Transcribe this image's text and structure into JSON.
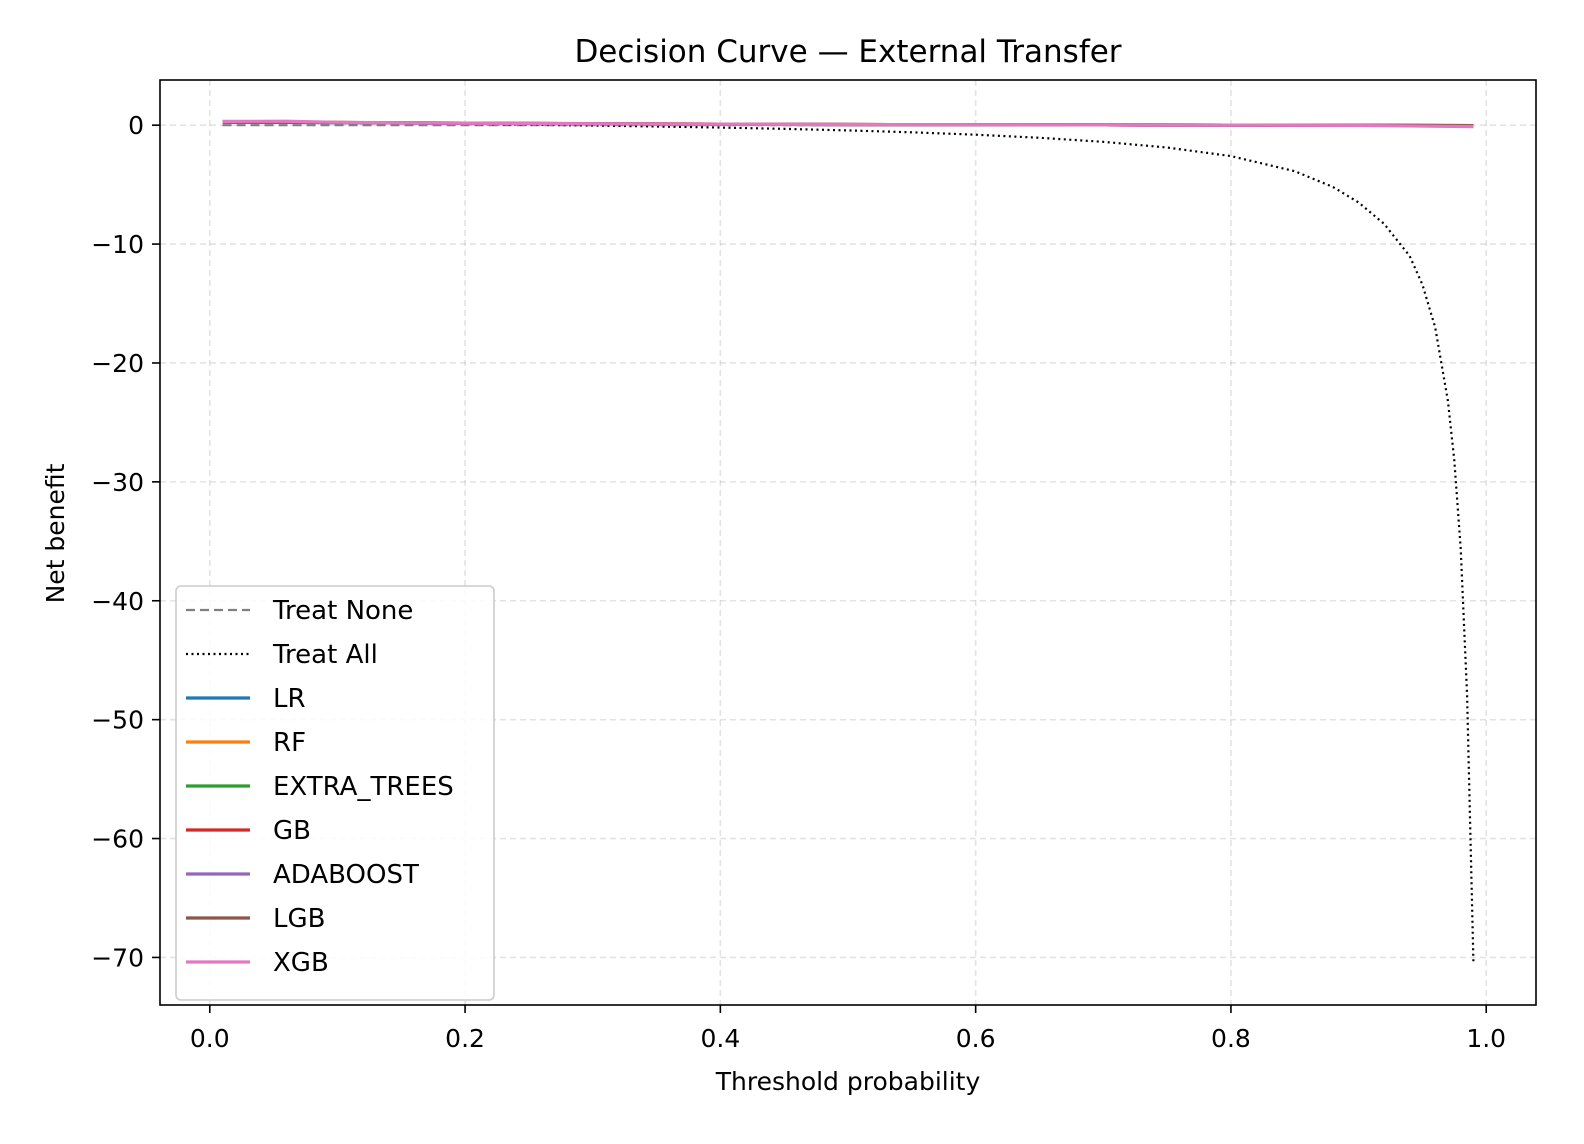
{
  "chart_data": {
    "type": "line",
    "title": "Decision Curve — External Transfer",
    "xlabel": "Threshold probability",
    "ylabel": "Net benefit",
    "xlim": [
      -0.039,
      1.039
    ],
    "ylim": [
      -74.0,
      3.8
    ],
    "xticks": [
      {
        "value": 0.0,
        "label": "0.0"
      },
      {
        "value": 0.2,
        "label": "0.2"
      },
      {
        "value": 0.4,
        "label": "0.4"
      },
      {
        "value": 0.6,
        "label": "0.6"
      },
      {
        "value": 0.8,
        "label": "0.8"
      },
      {
        "value": 1.0,
        "label": "1.0"
      }
    ],
    "yticks": [
      {
        "value": 0,
        "label": "0"
      },
      {
        "value": -10,
        "label": "−10"
      },
      {
        "value": -20,
        "label": "−20"
      },
      {
        "value": -30,
        "label": "−30"
      },
      {
        "value": -40,
        "label": "−40"
      },
      {
        "value": -50,
        "label": "−50"
      },
      {
        "value": -60,
        "label": "−60"
      },
      {
        "value": -70,
        "label": "−70"
      }
    ],
    "grid": true,
    "legend_position": "lower-left",
    "series": [
      {
        "name": "Treat None",
        "color": "#7f7f7f",
        "style": "dashed",
        "x": [
          0.01,
          0.99
        ],
        "y": [
          0,
          0
        ]
      },
      {
        "name": "Treat All",
        "color": "#000000",
        "style": "dotted",
        "x": [
          0.01,
          0.05,
          0.1,
          0.15,
          0.2,
          0.25,
          0.3,
          0.35,
          0.4,
          0.45,
          0.5,
          0.55,
          0.6,
          0.65,
          0.7,
          0.75,
          0.8,
          0.85,
          0.88,
          0.9,
          0.92,
          0.94,
          0.95,
          0.96,
          0.97,
          0.975,
          0.98,
          0.985,
          0.99
        ],
        "y": [
          0.28,
          0.24,
          0.2,
          0.15,
          0.1,
          0.04,
          -0.03,
          -0.11,
          -0.2,
          -0.31,
          -0.44,
          -0.6,
          -0.8,
          -1.06,
          -1.4,
          -1.88,
          -2.6,
          -3.87,
          -5.2,
          -6.5,
          -8.3,
          -11.0,
          -13.4,
          -17.0,
          -23.2,
          -28.2,
          -35.6,
          -47.9,
          -70.5
        ]
      },
      {
        "name": "LR",
        "color": "#1f77b4",
        "style": "solid",
        "x": [
          0.01,
          0.1,
          0.2,
          0.3,
          0.4,
          0.5,
          0.6,
          0.7,
          0.8,
          0.9,
          0.99
        ],
        "y": [
          0.26,
          0.22,
          0.16,
          0.12,
          0.09,
          0.06,
          0.04,
          0.02,
          0.01,
          0.0,
          -0.04
        ]
      },
      {
        "name": "RF",
        "color": "#ff7f0e",
        "style": "solid",
        "x": [
          0.01,
          0.1,
          0.2,
          0.3,
          0.4,
          0.5,
          0.6,
          0.7,
          0.8,
          0.9,
          0.99
        ],
        "y": [
          0.28,
          0.23,
          0.17,
          0.12,
          0.09,
          0.06,
          0.04,
          0.02,
          0.01,
          0.0,
          -0.05
        ]
      },
      {
        "name": "EXTRA_TREES",
        "color": "#2ca02c",
        "style": "solid",
        "x": [
          0.01,
          0.1,
          0.2,
          0.3,
          0.4,
          0.5,
          0.6,
          0.7,
          0.8,
          0.9,
          0.99
        ],
        "y": [
          0.27,
          0.22,
          0.16,
          0.12,
          0.08,
          0.05,
          0.03,
          0.02,
          0.01,
          0.0,
          -0.03
        ]
      },
      {
        "name": "GB",
        "color": "#d62728",
        "style": "solid",
        "x": [
          0.01,
          0.1,
          0.2,
          0.3,
          0.4,
          0.5,
          0.6,
          0.7,
          0.8,
          0.9,
          0.99
        ],
        "y": [
          0.27,
          0.23,
          0.17,
          0.12,
          0.09,
          0.06,
          0.04,
          0.02,
          0.01,
          0.0,
          -0.06
        ]
      },
      {
        "name": "ADABOOST",
        "color": "#9467bd",
        "style": "solid",
        "x": [
          0.01,
          0.1,
          0.2,
          0.3,
          0.4,
          0.5,
          0.6,
          0.7,
          0.8,
          0.9,
          0.99
        ],
        "y": [
          0.26,
          0.21,
          0.15,
          0.11,
          0.08,
          0.05,
          0.03,
          0.02,
          0.01,
          0.0,
          -0.04
        ]
      },
      {
        "name": "LGB",
        "color": "#8c564b",
        "style": "solid",
        "x": [
          0.01,
          0.1,
          0.2,
          0.3,
          0.4,
          0.5,
          0.6,
          0.7,
          0.8,
          0.9,
          0.99
        ],
        "y": [
          0.28,
          0.23,
          0.17,
          0.13,
          0.09,
          0.06,
          0.04,
          0.02,
          0.01,
          0.0,
          -0.05
        ]
      },
      {
        "name": "XGB",
        "color": "#e377c2",
        "style": "solid",
        "x": [
          0.01,
          0.06,
          0.1,
          0.2,
          0.3,
          0.4,
          0.5,
          0.6,
          0.7,
          0.8,
          0.9,
          0.99
        ],
        "y": [
          0.32,
          0.33,
          0.24,
          0.17,
          0.12,
          0.09,
          0.06,
          0.04,
          0.02,
          0.01,
          -0.02,
          -0.12
        ]
      }
    ]
  }
}
